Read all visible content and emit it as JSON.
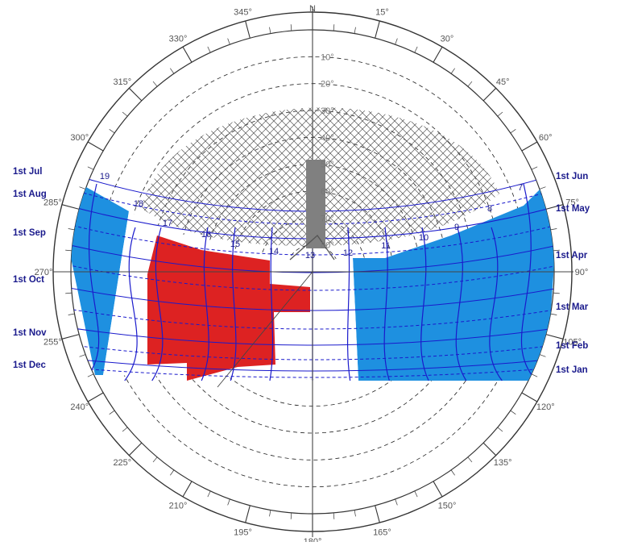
{
  "compass": {
    "north_label": "N"
  },
  "azimuth_labels": [
    {
      "deg": 15,
      "text": "15°"
    },
    {
      "deg": 30,
      "text": "30°"
    },
    {
      "deg": 45,
      "text": "45°"
    },
    {
      "deg": 60,
      "text": "60°"
    },
    {
      "deg": 75,
      "text": "75°"
    },
    {
      "deg": 90,
      "text": "90°"
    },
    {
      "deg": 105,
      "text": "105°"
    },
    {
      "deg": 120,
      "text": "120°"
    },
    {
      "deg": 135,
      "text": "135°"
    },
    {
      "deg": 150,
      "text": "150°"
    },
    {
      "deg": 165,
      "text": "165°"
    },
    {
      "deg": 180,
      "text": "180°"
    },
    {
      "deg": 195,
      "text": "195°"
    },
    {
      "deg": 210,
      "text": "210°"
    },
    {
      "deg": 225,
      "text": "225°"
    },
    {
      "deg": 240,
      "text": "240°"
    },
    {
      "deg": 255,
      "text": "255°"
    },
    {
      "deg": 270,
      "text": "270°"
    },
    {
      "deg": 285,
      "text": "285°"
    },
    {
      "deg": 300,
      "text": "300°"
    },
    {
      "deg": 315,
      "text": "315°"
    },
    {
      "deg": 330,
      "text": "330°"
    },
    {
      "deg": 345,
      "text": "345°"
    }
  ],
  "altitude_labels": [
    {
      "alt": 10,
      "text": "10°"
    },
    {
      "alt": 20,
      "text": "20°"
    },
    {
      "alt": 30,
      "text": "30°"
    },
    {
      "alt": 40,
      "text": "40°"
    },
    {
      "alt": 50,
      "text": "50°"
    },
    {
      "alt": 60,
      "text": "60°"
    },
    {
      "alt": 70,
      "text": "70°"
    },
    {
      "alt": 80,
      "text": "80°"
    }
  ],
  "month_labels_left": [
    "1st Jul",
    "1st Aug",
    "1st Sep",
    "1st Oct",
    "1st Nov",
    "1st Dec"
  ],
  "month_labels_right": [
    "1st Jun",
    "1st May",
    "1st Apr",
    "1st Mar",
    "1st Feb",
    "1st Jan"
  ],
  "hour_labels": [
    "19",
    "18",
    "17",
    "16",
    "15",
    "14",
    "13",
    "12",
    "11",
    "10",
    "9",
    "8",
    "7"
  ],
  "colors": {
    "blue_band": "#1e90e0",
    "red_region": "#dd2222",
    "sun_path": "#1a1acc",
    "ring": "#333333",
    "hatch": "#555555",
    "obstruction": "#808080"
  }
}
